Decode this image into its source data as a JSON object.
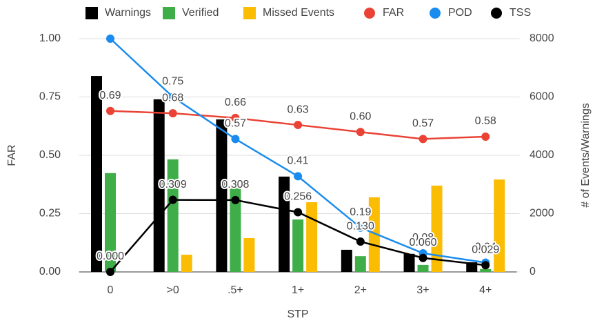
{
  "chart_data": {
    "type": "combo",
    "x_label": "STP",
    "y_label": "FAR",
    "y2_label": "# of Events/Warnings",
    "categories": [
      "0",
      ">0",
      ".5+",
      "1+",
      "2+",
      "3+",
      "4+"
    ],
    "ylim": [
      0,
      1
    ],
    "yticks": [
      {
        "value": 0,
        "label": "0.00"
      },
      0.25,
      {
        "value": 0.5,
        "label": "0.50"
      },
      0.75,
      {
        "value": 1,
        "label": "1.00"
      }
    ],
    "y2lim": [
      0,
      8000
    ],
    "y2ticks": [
      0,
      2000,
      4000,
      6000,
      8000
    ],
    "grid": true,
    "legend": "top",
    "series": [
      {
        "name": "Warnings",
        "type": "bar",
        "axis": "y2",
        "color": "#000000",
        "values": [
          6720,
          5920,
          5230,
          3270,
          760,
          620,
          330
        ]
      },
      {
        "name": "Verified",
        "type": "bar",
        "axis": "y2",
        "color": "#3fae49",
        "values": [
          3390,
          3860,
          2890,
          1800,
          540,
          240,
          100
        ]
      },
      {
        "name": "Missed Events",
        "type": "bar",
        "axis": "y2",
        "color": "#fbbc04",
        "values": [
          0,
          590,
          1160,
          2390,
          2560,
          2960,
          3170
        ]
      },
      {
        "name": "FAR",
        "type": "line",
        "color": "#ea4335",
        "values": [
          0.69,
          0.68,
          0.66,
          0.63,
          0.6,
          0.57,
          0.58
        ],
        "value_labels": [
          "0.69",
          "0.68",
          "0.66",
          "0.63",
          "0.60",
          "0.57",
          "0.58"
        ]
      },
      {
        "name": "POD",
        "type": "line",
        "color": "#1a8cef",
        "values": [
          1,
          0.75,
          0.57,
          0.41,
          0.19,
          0.08,
          0.04
        ],
        "value_labels": [
          null,
          "0.75",
          "0.57",
          "0.41",
          "0.19",
          "0.08",
          "0.04"
        ]
      },
      {
        "name": "TSS",
        "type": "line",
        "color": "#000000",
        "values": [
          0,
          0.309,
          0.308,
          0.256,
          0.13,
          0.06,
          0.029
        ],
        "value_labels": [
          "0.000",
          "0.309",
          "0.308",
          "0.256",
          "0.130",
          "0.060",
          "0.029"
        ]
      }
    ]
  }
}
